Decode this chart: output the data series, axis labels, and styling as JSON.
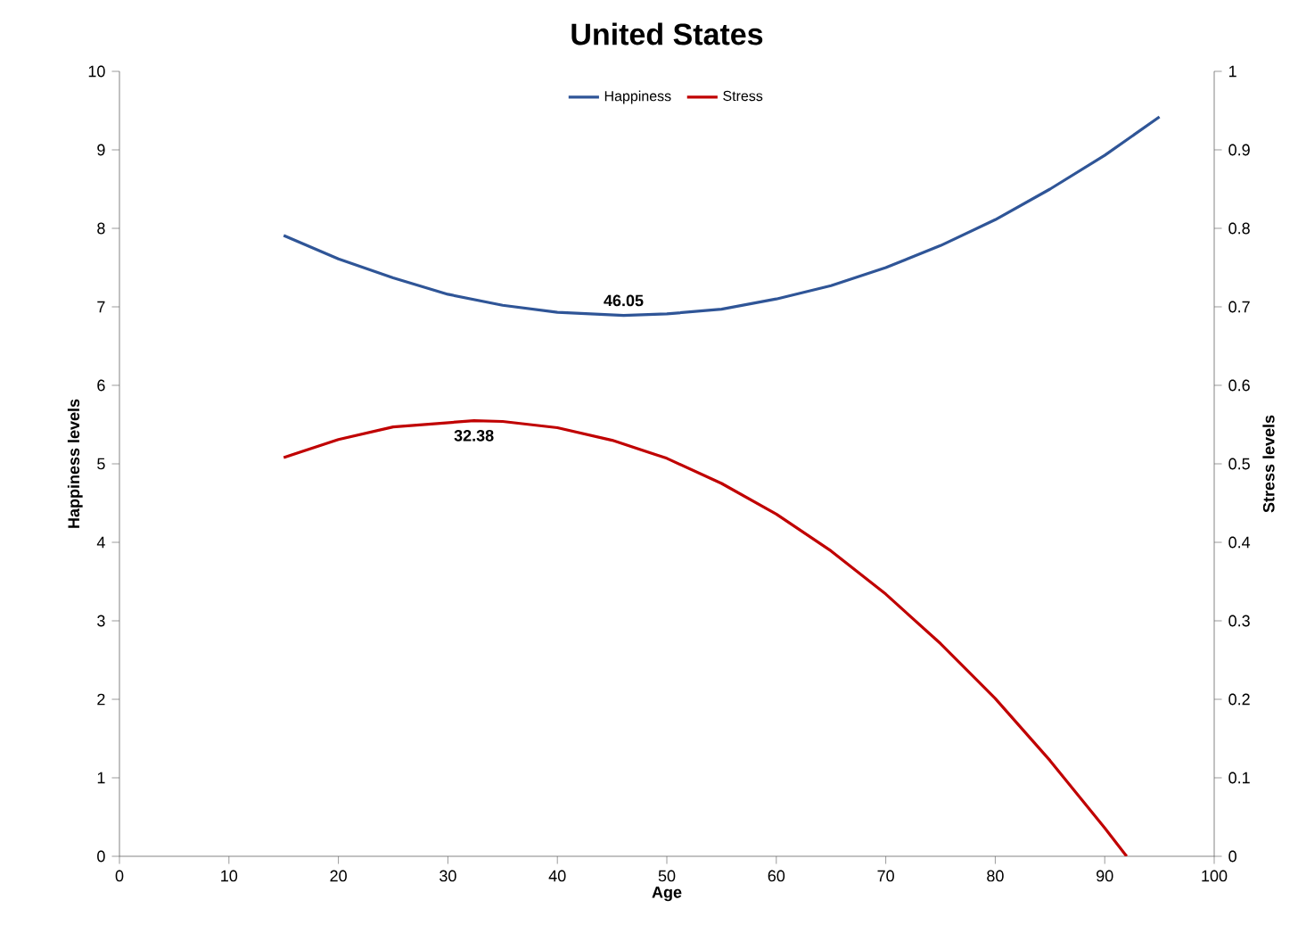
{
  "chart_data": {
    "type": "line",
    "title": "United States",
    "xlabel": "Age",
    "ylabel": "Happiness levels",
    "y2label": "Stress levels",
    "series": [
      {
        "name": "Happiness",
        "color": "#2f5597",
        "x": [
          15,
          20,
          25,
          30,
          35,
          40,
          46.05,
          50,
          55,
          60,
          65,
          70,
          75,
          80,
          85,
          90,
          95
        ],
        "values": [
          7.91,
          7.61,
          7.37,
          7.16,
          7.02,
          6.93,
          6.89,
          6.91,
          6.97,
          7.1,
          7.27,
          7.5,
          7.78,
          8.11,
          8.5,
          8.93,
          9.42
        ]
      },
      {
        "name": "Stress",
        "color": "#c00000",
        "axis": "y2",
        "x": [
          15,
          20,
          25,
          32.38,
          35,
          40,
          45,
          50,
          55,
          60,
          65,
          70,
          75,
          80,
          85,
          90,
          92
        ],
        "values": [
          0.508,
          0.531,
          0.547,
          0.555,
          0.554,
          0.546,
          0.53,
          0.507,
          0.475,
          0.436,
          0.389,
          0.334,
          0.271,
          0.201,
          0.122,
          0.036,
          0
        ]
      }
    ],
    "annotations": [
      {
        "text": "46.05",
        "x": 46.05,
        "y": 6.89
      },
      {
        "text": "32.38",
        "x": 32.38,
        "y": 5.55
      }
    ],
    "xlim": [
      0,
      100
    ],
    "xticks": [
      0,
      10,
      20,
      30,
      40,
      50,
      60,
      70,
      80,
      90,
      100
    ],
    "ylim": [
      0,
      10
    ],
    "yticks": [
      0,
      1,
      2,
      3,
      4,
      5,
      6,
      7,
      8,
      9,
      10
    ],
    "y2lim": [
      0,
      1
    ],
    "y2ticks": [
      0,
      0.1,
      0.2,
      0.3,
      0.4,
      0.5,
      0.6,
      0.7,
      0.8,
      0.9,
      1
    ],
    "legend": "top",
    "grid": false,
    "marker": "none",
    "line_style": "solid"
  }
}
